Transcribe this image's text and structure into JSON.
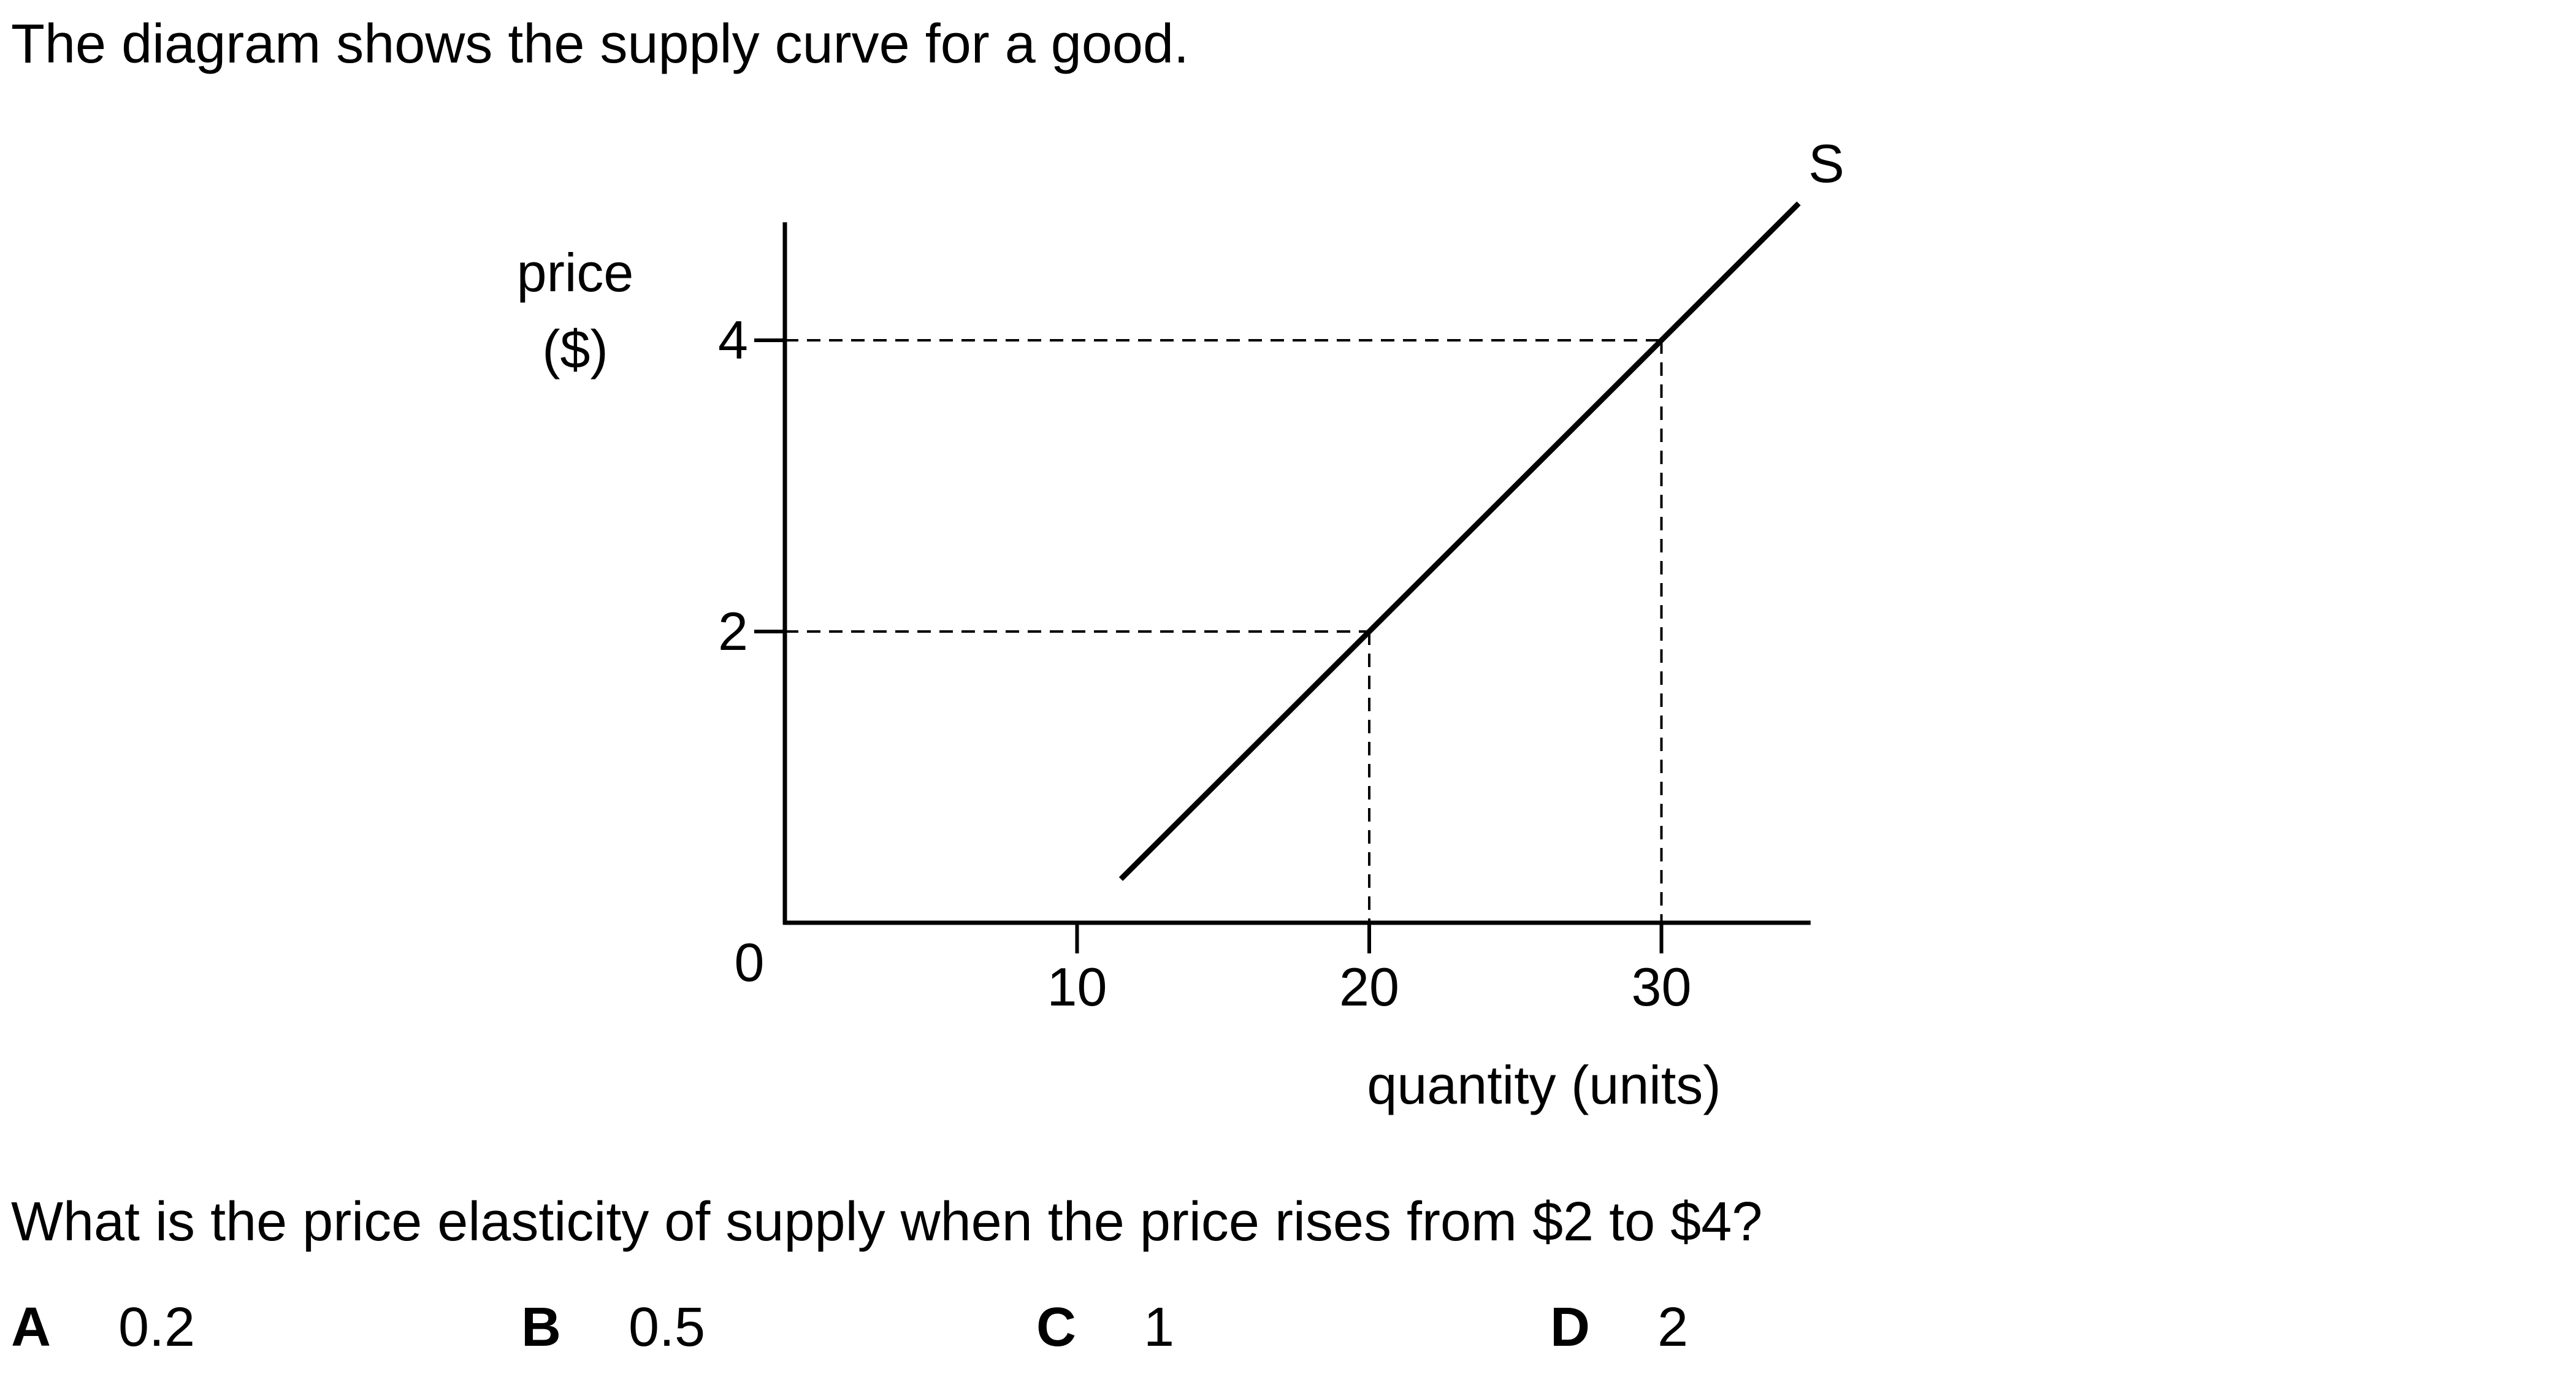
{
  "intro_text": "The diagram shows the supply curve for a good.",
  "question_text": "What is the price elasticity of supply when the price rises from $2 to $4?",
  "options": [
    {
      "letter": "A",
      "value": "0.2"
    },
    {
      "letter": "B",
      "value": "0.5"
    },
    {
      "letter": "C",
      "value": "1"
    },
    {
      "letter": "D",
      "value": "2"
    }
  ],
  "chart_data": {
    "type": "line",
    "ylabel_line1": "price",
    "ylabel_line2": "($)",
    "xlabel": "quantity (units)",
    "origin_label": "0",
    "xlim": [
      0,
      35
    ],
    "ylim": [
      0,
      5
    ],
    "x_ticks": [
      {
        "value": 10,
        "label": "10"
      },
      {
        "value": 20,
        "label": "20"
      },
      {
        "value": 30,
        "label": "30"
      }
    ],
    "y_ticks": [
      {
        "value": 2,
        "label": "2"
      },
      {
        "value": 4,
        "label": "4"
      }
    ],
    "series": [
      {
        "name": "S",
        "color": "#000000",
        "x": [
          11.5,
          20,
          30,
          34.7
        ],
        "y": [
          0.3,
          2,
          4,
          4.94
        ]
      }
    ],
    "reference_points": [
      {
        "x": 20,
        "y": 2
      },
      {
        "x": 30,
        "y": 4
      }
    ],
    "grid": false
  }
}
